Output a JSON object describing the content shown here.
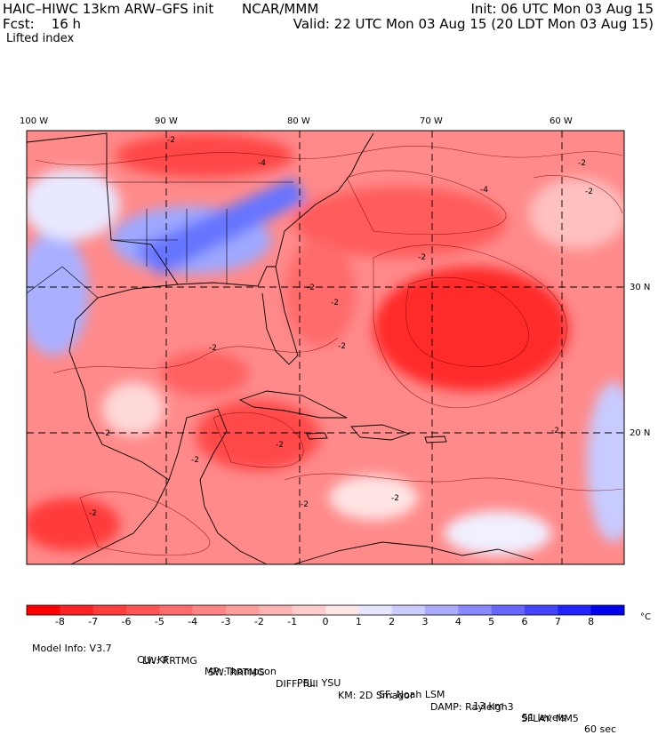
{
  "header": {
    "model": "HAIC–HIWC 13km ARW–GFS init",
    "center": "NCAR/MMM",
    "init": "Init: 06 UTC Mon 03 Aug 15",
    "fcst": "Fcst:    16 h",
    "valid": "Valid: 22 UTC Mon 03 Aug 15 (20 LDT Mon 03 Aug 15)",
    "field": "Lifted index"
  },
  "axes": {
    "lon_labels": [
      "100 W",
      "90 W",
      "80 W",
      "70 W",
      "60 W"
    ],
    "lat_labels": [
      "30 N",
      "20 N"
    ]
  },
  "map": {
    "variable": "Lifted index",
    "contour_labels": [
      "-2",
      "-4"
    ],
    "domain": "Gulf of Mexico, Caribbean and western North Atlantic",
    "regions": [
      {
        "name": "northern Gulf coast states",
        "tendency": "positive (stable)"
      },
      {
        "name": "central Atlantic east of Bahamas",
        "tendency": "strongly negative (unstable)"
      },
      {
        "name": "Caribbean Sea",
        "tendency": "negative (unstable)"
      }
    ]
  },
  "colorbar": {
    "unit": "°C",
    "ticks": [
      "-8",
      "-7",
      "-6",
      "-5",
      "-4",
      "-3",
      "-2",
      "-1",
      "0",
      "1",
      "2",
      "3",
      "4",
      "5",
      "6",
      "7",
      "8"
    ],
    "colors": [
      "#ff0000",
      "#ff2222",
      "#ff3c3c",
      "#ff5454",
      "#ff6c6c",
      "#ff8484",
      "#ff9c9c",
      "#ffb4b4",
      "#ffcccc",
      "#ffe6e6",
      "#e6e6ff",
      "#ccccff",
      "#aaaaff",
      "#8888ff",
      "#6666ff",
      "#4444ff",
      "#2222ff",
      "#0000ee"
    ]
  },
  "info": {
    "line1": [
      "Model Info: V3.7",
      "CU: KF",
      "MP: Thompson",
      "PBL: YSU",
      "SF: Noah LSM",
      "13 km",
      "51 levels",
      "60 sec"
    ],
    "line2": [
      "LW: RRTMG",
      "SW: RRTMG",
      "DIFF: full",
      "KM: 2D Smagor",
      "DAMP: Rayleigh3",
      "SFLAY: MM5"
    ]
  }
}
